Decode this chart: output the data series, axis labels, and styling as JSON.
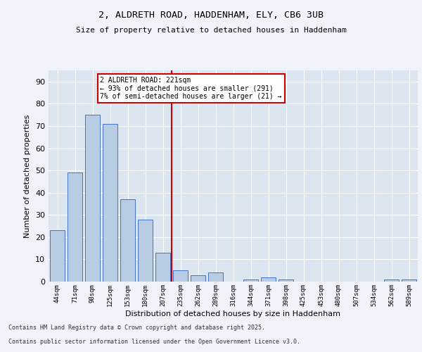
{
  "title1": "2, ALDRETH ROAD, HADDENHAM, ELY, CB6 3UB",
  "title2": "Size of property relative to detached houses in Haddenham",
  "xlabel": "Distribution of detached houses by size in Haddenham",
  "ylabel": "Number of detached properties",
  "categories": [
    "44sqm",
    "71sqm",
    "98sqm",
    "125sqm",
    "153sqm",
    "180sqm",
    "207sqm",
    "235sqm",
    "262sqm",
    "289sqm",
    "316sqm",
    "344sqm",
    "371sqm",
    "398sqm",
    "425sqm",
    "453sqm",
    "480sqm",
    "507sqm",
    "534sqm",
    "562sqm",
    "589sqm"
  ],
  "values": [
    23,
    49,
    75,
    71,
    37,
    28,
    13,
    5,
    3,
    4,
    0,
    1,
    2,
    1,
    0,
    0,
    0,
    0,
    0,
    1,
    1
  ],
  "bar_color": "#b8cce4",
  "bar_edge_color": "#4472c4",
  "bg_color": "#dce6f1",
  "grid_color": "#ffffff",
  "vline_color": "#cc0000",
  "annotation_title": "2 ALDRETH ROAD: 221sqm",
  "annotation_line1": "← 93% of detached houses are smaller (291)",
  "annotation_line2": "7% of semi-detached houses are larger (21) →",
  "annotation_box_color": "#cc0000",
  "footer1": "Contains HM Land Registry data © Crown copyright and database right 2025.",
  "footer2": "Contains public sector information licensed under the Open Government Licence v3.0.",
  "ylim": [
    0,
    95
  ],
  "yticks": [
    0,
    10,
    20,
    30,
    40,
    50,
    60,
    70,
    80,
    90
  ],
  "fig_bg": "#f0f4fa"
}
